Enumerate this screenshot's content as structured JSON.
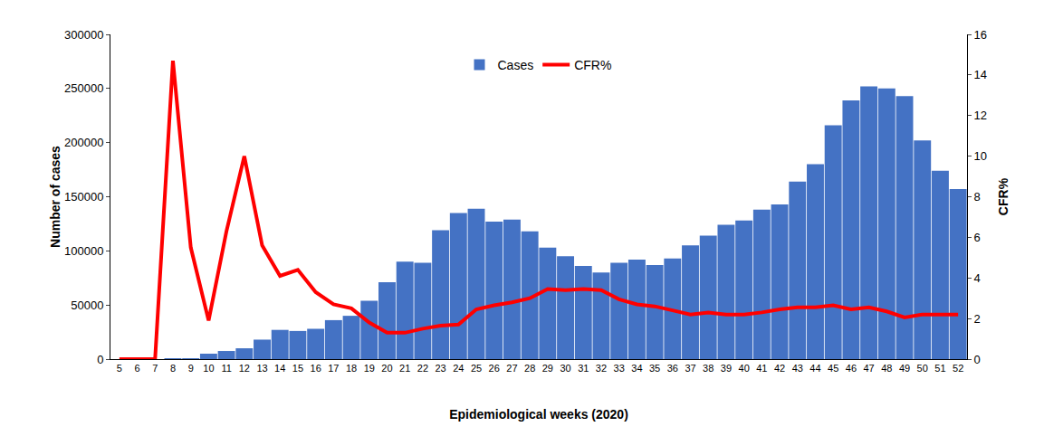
{
  "chart_data": {
    "type": "bar",
    "x_label": "Epidemiological weeks (2020)",
    "y_label": "Number of cases",
    "y2_label": "CFR%",
    "categories": [
      "5",
      "6",
      "7",
      "8",
      "9",
      "10",
      "11",
      "12",
      "13",
      "14",
      "15",
      "16",
      "17",
      "18",
      "19",
      "20",
      "21",
      "22",
      "23",
      "24",
      "25",
      "26",
      "27",
      "28",
      "29",
      "30",
      "31",
      "32",
      "33",
      "34",
      "35",
      "36",
      "37",
      "38",
      "39",
      "40",
      "41",
      "42",
      "43",
      "44",
      "45",
      "46",
      "47",
      "48",
      "49",
      "50",
      "51",
      "52"
    ],
    "series": [
      {
        "name": "Cases",
        "type": "bar",
        "color": "#4472c4",
        "values": [
          0,
          0,
          0,
          100,
          500,
          5000,
          7500,
          10000,
          18000,
          27000,
          26000,
          28000,
          36000,
          40000,
          54000,
          71000,
          90000,
          89000,
          119000,
          135000,
          139000,
          127000,
          129000,
          118000,
          103000,
          95000,
          86000,
          80000,
          89000,
          92000,
          87000,
          93000,
          105000,
          114000,
          124000,
          128000,
          138000,
          143000,
          164000,
          180000,
          216000,
          239000,
          252000,
          250000,
          243000,
          202000,
          174000,
          157000
        ]
      },
      {
        "name": "CFR%",
        "type": "line",
        "axis": "y2",
        "color": "#ff0000",
        "values": [
          0,
          0,
          0,
          14.7,
          5.5,
          1.9,
          6.3,
          10,
          5.6,
          4.1,
          4.4,
          3.3,
          2.7,
          2.5,
          1.8,
          1.3,
          1.3,
          1.5,
          1.65,
          1.7,
          2.45,
          2.65,
          2.8,
          3.0,
          3.45,
          3.4,
          3.45,
          3.4,
          2.95,
          2.7,
          2.6,
          2.4,
          2.2,
          2.3,
          2.2,
          2.2,
          2.3,
          2.45,
          2.55,
          2.55,
          2.65,
          2.45,
          2.55,
          2.35,
          2.05,
          2.2,
          2.2,
          2.2
        ]
      }
    ],
    "ylim": [
      0,
      300000
    ],
    "yticks": [
      0,
      50000,
      100000,
      150000,
      200000,
      250000,
      300000
    ],
    "y2lim": [
      0,
      16
    ],
    "y2ticks": [
      0,
      2,
      4,
      6,
      8,
      10,
      12,
      14,
      16
    ],
    "grid": false,
    "legend": "top"
  }
}
